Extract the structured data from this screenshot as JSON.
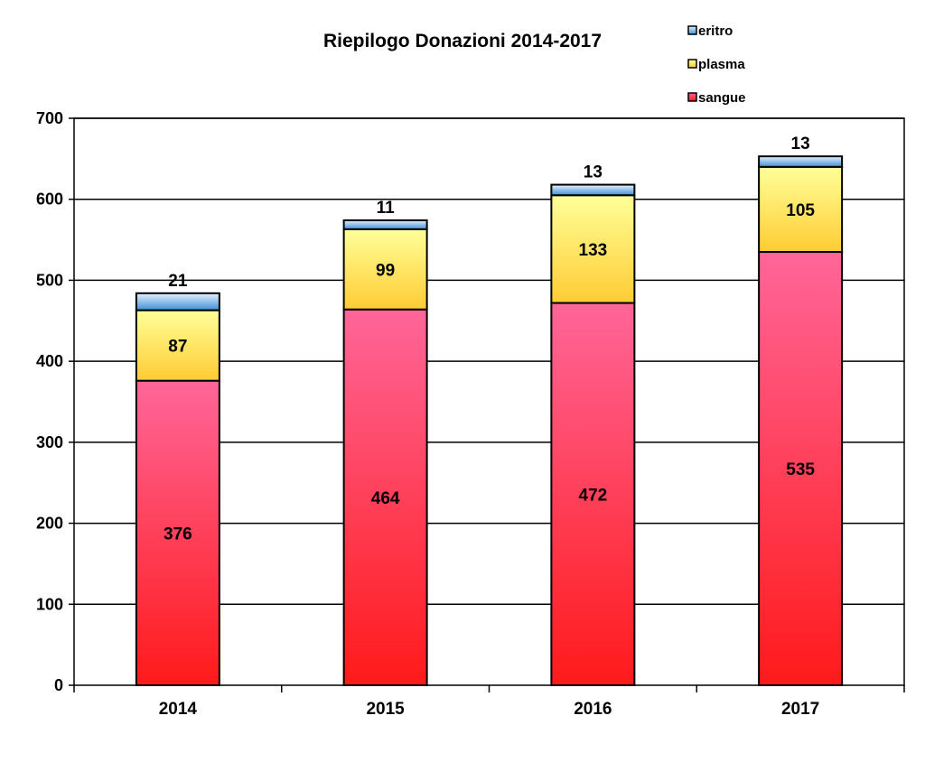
{
  "chart_data": {
    "type": "bar",
    "stacked": true,
    "title": "Riepilogo Donazioni 2014-2017",
    "xlabel": "",
    "ylabel": "",
    "categories": [
      "2014",
      "2015",
      "2016",
      "2017"
    ],
    "series": [
      {
        "name": "sangue",
        "values": [
          376,
          464,
          472,
          535
        ]
      },
      {
        "name": "plasma",
        "values": [
          87,
          99,
          133,
          105
        ]
      },
      {
        "name": "eritro",
        "values": [
          21,
          11,
          13,
          13
        ]
      }
    ],
    "ylim": [
      0,
      700
    ],
    "yticks": [
      "0",
      "100",
      "200",
      "300",
      "400",
      "500",
      "600",
      "700"
    ],
    "grid": true,
    "legend_position": "top-right",
    "colors": {
      "sangue_top": "#ff6699",
      "sangue_bottom": "#ff1a1a",
      "plasma_top": "#ffff99",
      "plasma_bottom": "#ffcc33",
      "eritro_top": "#e6f2ff",
      "eritro_bottom": "#3d8fd6",
      "grid": "#000000"
    }
  }
}
